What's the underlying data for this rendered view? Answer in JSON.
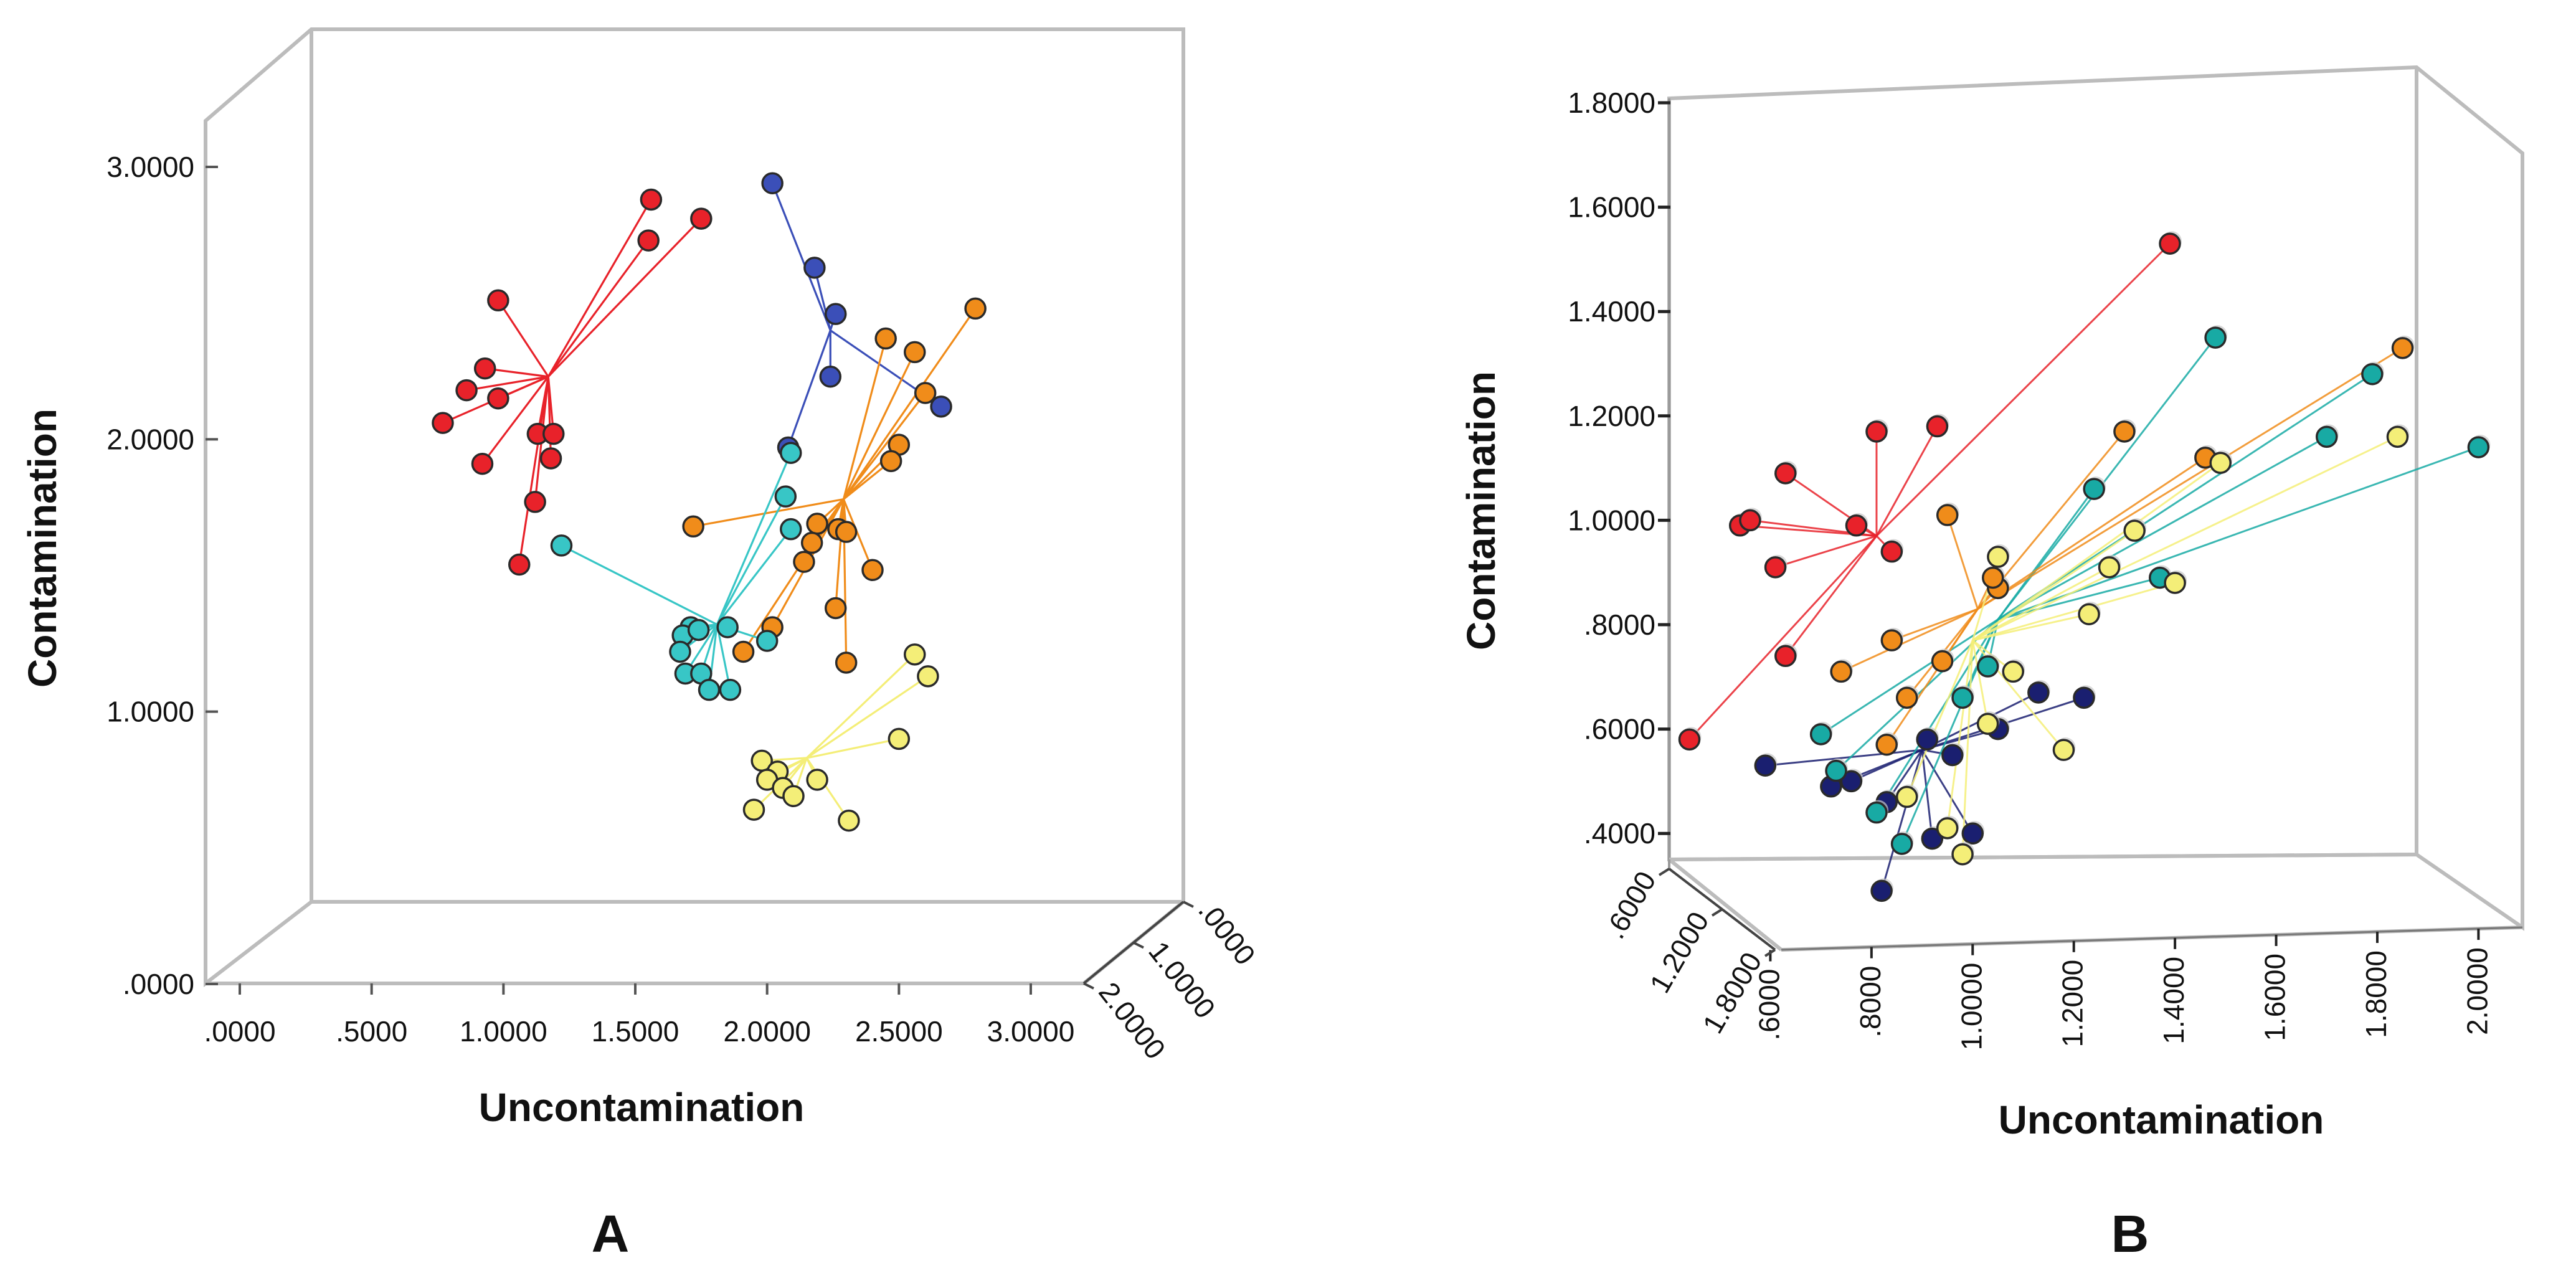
{
  "colors": {
    "red": "#e8222a",
    "blue": "#3b4fb8",
    "orange": "#f08c1a",
    "cyan": "#38c6c6",
    "yellow": "#f4ee78",
    "navy": "#1a1f70",
    "teal": "#18aaa4",
    "yorange": "#f5b82a"
  },
  "chart_data": [
    {
      "type": "scatter",
      "panel_label": "A",
      "xlabel": "Uncontamination",
      "ylabel": "Contamination",
      "x_ticks": [
        ".0000",
        ".5000",
        "1.0000",
        "1.5000",
        "2.0000",
        "2.5000",
        "3.0000"
      ],
      "y_ticks": [
        ".0000",
        "1.0000",
        "2.0000",
        "3.0000"
      ],
      "z_ticks": [
        ".0000",
        "1.0000",
        "2.0000"
      ],
      "xlim": [
        0,
        3
      ],
      "ylim": [
        0,
        3
      ],
      "grid": false,
      "series": [
        {
          "color": "red",
          "centroid": [
            1.17,
            2.23
          ],
          "points": [
            [
              1.56,
              2.88
            ],
            [
              1.55,
              2.73
            ],
            [
              1.75,
              2.81
            ],
            [
              0.98,
              2.51
            ],
            [
              0.93,
              2.26
            ],
            [
              0.86,
              2.18
            ],
            [
              0.98,
              2.15
            ],
            [
              0.77,
              2.06
            ],
            [
              0.92,
              1.91
            ],
            [
              1.13,
              2.02
            ],
            [
              1.19,
              2.02
            ],
            [
              1.18,
              1.93
            ],
            [
              1.12,
              1.77
            ],
            [
              1.06,
              1.54
            ]
          ]
        },
        {
          "color": "blue",
          "centroid": [
            2.24,
            2.4
          ],
          "points": [
            [
              2.02,
              2.94
            ],
            [
              2.18,
              2.63
            ],
            [
              2.26,
              2.46
            ],
            [
              2.24,
              2.23
            ],
            [
              2.66,
              2.12
            ],
            [
              2.08,
              1.97
            ]
          ]
        },
        {
          "color": "orange",
          "centroid": [
            2.29,
            1.78
          ],
          "points": [
            [
              2.79,
              2.48
            ],
            [
              2.45,
              2.37
            ],
            [
              2.56,
              2.32
            ],
            [
              2.6,
              2.17
            ],
            [
              2.5,
              1.98
            ],
            [
              2.47,
              1.92
            ],
            [
              2.19,
              1.69
            ],
            [
              2.27,
              1.67
            ],
            [
              2.3,
              1.66
            ],
            [
              2.17,
              1.62
            ],
            [
              2.14,
              1.55
            ],
            [
              2.4,
              1.52
            ],
            [
              1.72,
              1.68
            ],
            [
              2.02,
              1.31
            ],
            [
              1.91,
              1.22
            ],
            [
              2.26,
              1.38
            ],
            [
              2.3,
              1.18
            ]
          ]
        },
        {
          "color": "cyan",
          "centroid": [
            1.81,
            1.32
          ],
          "points": [
            [
              2.09,
              1.95
            ],
            [
              2.07,
              1.79
            ],
            [
              2.09,
              1.67
            ],
            [
              1.22,
              1.61
            ],
            [
              1.71,
              1.31
            ],
            [
              1.68,
              1.28
            ],
            [
              1.74,
              1.3
            ],
            [
              1.85,
              1.31
            ],
            [
              1.67,
              1.22
            ],
            [
              1.69,
              1.14
            ],
            [
              1.75,
              1.14
            ],
            [
              1.78,
              1.08
            ],
            [
              1.86,
              1.08
            ],
            [
              2.0,
              1.26
            ]
          ]
        },
        {
          "color": "yellow",
          "centroid": [
            2.15,
            0.83
          ],
          "points": [
            [
              2.56,
              1.21
            ],
            [
              2.61,
              1.13
            ],
            [
              2.5,
              0.9
            ],
            [
              1.98,
              0.82
            ],
            [
              2.04,
              0.78
            ],
            [
              2.0,
              0.75
            ],
            [
              2.19,
              0.75
            ],
            [
              2.06,
              0.72
            ],
            [
              2.1,
              0.69
            ],
            [
              1.95,
              0.64
            ],
            [
              2.31,
              0.6
            ]
          ]
        }
      ]
    },
    {
      "type": "scatter",
      "panel_label": "B",
      "xlabel": "Uncontamination",
      "ylabel": "Contamination",
      "x_ticks": [
        ".6000",
        ".8000",
        "1.0000",
        "1.2000",
        "1.4000",
        "1.6000",
        "1.8000",
        "2.0000"
      ],
      "y_ticks": [
        ".4000",
        ".6000",
        ".8000",
        "1.0000",
        "1.2000",
        "1.4000",
        "1.6000",
        "1.8000"
      ],
      "z_ticks": [
        ".6000",
        "1.2000",
        "1.8000"
      ],
      "xlim": [
        0.4,
        2.05
      ],
      "ylim": [
        0.3,
        1.8
      ],
      "grid": false,
      "series": [
        {
          "color": "red",
          "centroid": [
            0.81,
            0.97
          ],
          "points": [
            [
              1.39,
              1.53
            ],
            [
              0.81,
              1.17
            ],
            [
              0.93,
              1.18
            ],
            [
              0.63,
              1.09
            ],
            [
              0.54,
              0.99
            ],
            [
              0.56,
              1.0
            ],
            [
              0.77,
              0.99
            ],
            [
              0.84,
              0.94
            ],
            [
              0.61,
              0.91
            ],
            [
              0.63,
              0.74
            ],
            [
              0.44,
              0.58
            ]
          ]
        },
        {
          "color": "navy",
          "centroid": [
            0.9,
            0.56
          ],
          "points": [
            [
              0.59,
              0.53
            ],
            [
              0.72,
              0.49
            ],
            [
              0.76,
              0.5
            ],
            [
              0.83,
              0.46
            ],
            [
              0.91,
              0.58
            ],
            [
              0.96,
              0.55
            ],
            [
              1.05,
              0.6
            ],
            [
              1.13,
              0.67
            ],
            [
              1.22,
              0.66
            ],
            [
              0.92,
              0.39
            ],
            [
              1.0,
              0.4
            ],
            [
              0.82,
              0.29
            ]
          ]
        },
        {
          "color": "teal",
          "centroid": [
            1.05,
            0.81
          ],
          "points": [
            [
              1.48,
              1.35
            ],
            [
              1.24,
              1.06
            ],
            [
              1.37,
              0.89
            ],
            [
              1.79,
              1.28
            ],
            [
              1.7,
              1.16
            ],
            [
              2.0,
              1.14
            ],
            [
              0.7,
              0.59
            ],
            [
              0.73,
              0.52
            ],
            [
              0.81,
              0.44
            ],
            [
              0.86,
              0.38
            ],
            [
              1.03,
              0.72
            ],
            [
              0.98,
              0.66
            ]
          ]
        },
        {
          "color": "orange",
          "centroid": [
            1.01,
            0.83
          ],
          "points": [
            [
              1.3,
              1.17
            ],
            [
              1.46,
              1.12
            ],
            [
              1.85,
              1.33
            ],
            [
              0.95,
              1.01
            ],
            [
              1.05,
              0.87
            ],
            [
              1.04,
              0.89
            ],
            [
              0.84,
              0.77
            ],
            [
              0.74,
              0.71
            ],
            [
              0.87,
              0.66
            ],
            [
              0.83,
              0.57
            ],
            [
              0.94,
              0.73
            ]
          ]
        },
        {
          "color": "yellow",
          "centroid": [
            1.0,
            0.77
          ],
          "points": [
            [
              1.49,
              1.11
            ],
            [
              1.84,
              1.16
            ],
            [
              1.32,
              0.98
            ],
            [
              1.27,
              0.91
            ],
            [
              1.4,
              0.88
            ],
            [
              1.23,
              0.82
            ],
            [
              1.05,
              0.93
            ],
            [
              1.08,
              0.71
            ],
            [
              1.03,
              0.61
            ],
            [
              1.18,
              0.56
            ],
            [
              0.87,
              0.47
            ],
            [
              0.95,
              0.41
            ],
            [
              0.98,
              0.36
            ]
          ]
        }
      ]
    }
  ]
}
